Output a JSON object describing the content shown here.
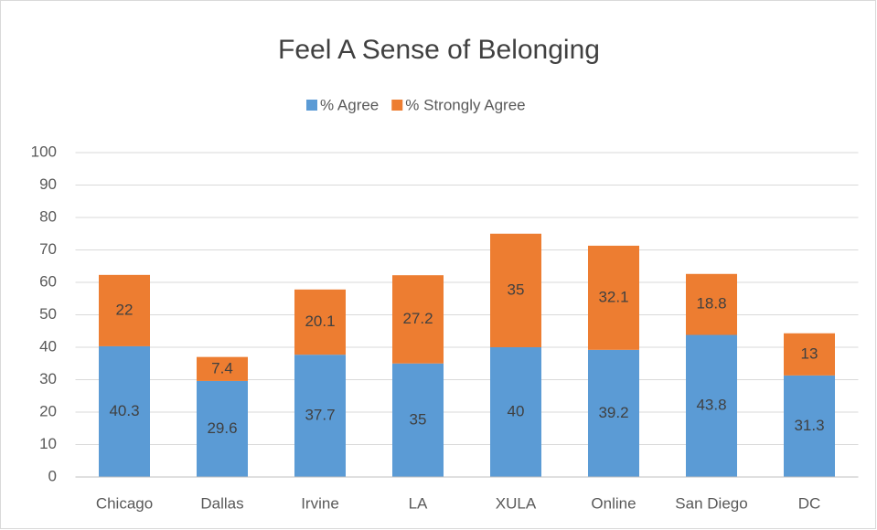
{
  "chart_data": {
    "type": "stacked_bar",
    "title": "Feel A Sense of Belonging",
    "categories": [
      "Chicago",
      "Dallas",
      "Irvine",
      "LA",
      "XULA",
      "Online",
      "San Diego",
      "DC"
    ],
    "series": [
      {
        "name": "% Agree",
        "color": "#5b9bd5",
        "values": [
          40.3,
          29.6,
          37.7,
          35,
          40,
          39.2,
          43.8,
          31.3
        ]
      },
      {
        "name": "% Strongly Agree",
        "color": "#ed7d31",
        "values": [
          22,
          7.4,
          20.1,
          27.2,
          35,
          32.1,
          18.8,
          13
        ]
      }
    ],
    "ylim": [
      0,
      100
    ],
    "yticks": [
      0,
      10,
      20,
      30,
      40,
      50,
      60,
      70,
      80,
      90,
      100
    ],
    "grid": true,
    "legend": "top"
  }
}
